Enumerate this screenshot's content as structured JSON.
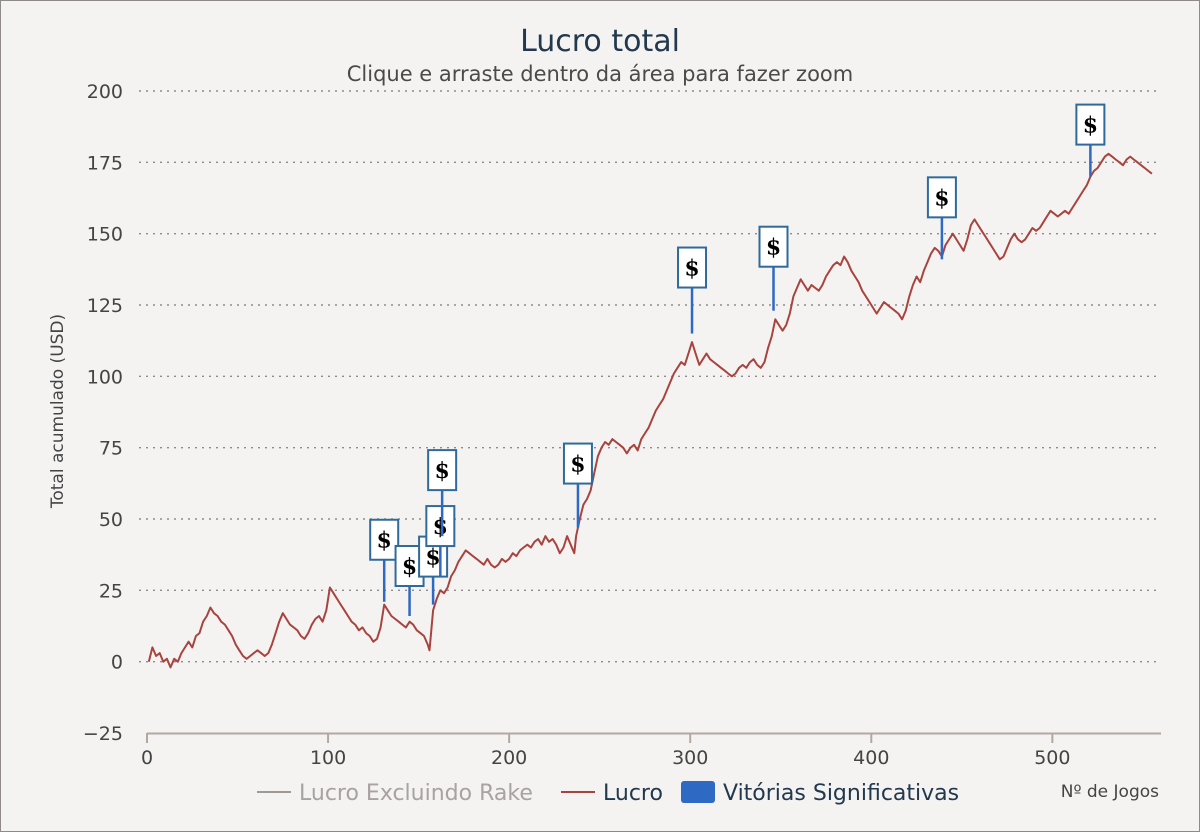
{
  "chart_data": {
    "type": "line",
    "title": "Lucro total",
    "subtitle": "Clique e arraste dentro da área para fazer zoom",
    "ylabel": "Total acumulado (USD)",
    "xlabel": "Nº de Jogos",
    "xlim": [
      0,
      560
    ],
    "ylim": [
      -25,
      200
    ],
    "x_ticks": [
      0,
      100,
      200,
      300,
      400,
      500
    ],
    "y_ticks": [
      200,
      175,
      150,
      125,
      100,
      75,
      50,
      25,
      0,
      -25
    ],
    "grid": true,
    "legend_position": "bottom",
    "legend": [
      {
        "label": "Lucro Excluindo Rake",
        "color": "#a09a96",
        "kind": "line",
        "visible": false
      },
      {
        "label": "Lucro",
        "color": "#a8443f",
        "kind": "line",
        "visible": true
      },
      {
        "label": "Vitórias Significativas",
        "color": "#2e69c4",
        "kind": "box",
        "visible": true
      }
    ],
    "series": [
      {
        "name": "Lucro",
        "color": "#a8443f",
        "points": [
          [
            1,
            0
          ],
          [
            3,
            5
          ],
          [
            5,
            2
          ],
          [
            7,
            3
          ],
          [
            9,
            0
          ],
          [
            11,
            1
          ],
          [
            13,
            -2
          ],
          [
            15,
            1
          ],
          [
            17,
            0
          ],
          [
            19,
            3
          ],
          [
            21,
            5
          ],
          [
            23,
            7
          ],
          [
            25,
            5
          ],
          [
            27,
            9
          ],
          [
            29,
            10
          ],
          [
            31,
            14
          ],
          [
            33,
            16
          ],
          [
            35,
            19
          ],
          [
            37,
            17
          ],
          [
            39,
            16
          ],
          [
            41,
            14
          ],
          [
            43,
            13
          ],
          [
            45,
            11
          ],
          [
            47,
            9
          ],
          [
            49,
            6
          ],
          [
            51,
            4
          ],
          [
            53,
            2
          ],
          [
            55,
            1
          ],
          [
            57,
            2
          ],
          [
            59,
            3
          ],
          [
            61,
            4
          ],
          [
            63,
            3
          ],
          [
            65,
            2
          ],
          [
            67,
            3
          ],
          [
            69,
            6
          ],
          [
            71,
            10
          ],
          [
            73,
            14
          ],
          [
            75,
            17
          ],
          [
            77,
            15
          ],
          [
            79,
            13
          ],
          [
            81,
            12
          ],
          [
            83,
            11
          ],
          [
            85,
            9
          ],
          [
            87,
            8
          ],
          [
            89,
            10
          ],
          [
            91,
            13
          ],
          [
            93,
            15
          ],
          [
            95,
            16
          ],
          [
            97,
            14
          ],
          [
            99,
            18
          ],
          [
            101,
            26
          ],
          [
            103,
            24
          ],
          [
            105,
            22
          ],
          [
            107,
            20
          ],
          [
            109,
            18
          ],
          [
            111,
            16
          ],
          [
            113,
            14
          ],
          [
            115,
            13
          ],
          [
            117,
            11
          ],
          [
            119,
            12
          ],
          [
            121,
            10
          ],
          [
            123,
            9
          ],
          [
            125,
            7
          ],
          [
            127,
            8
          ],
          [
            129,
            12
          ],
          [
            131,
            20
          ],
          [
            133,
            18
          ],
          [
            135,
            16
          ],
          [
            137,
            15
          ],
          [
            139,
            14
          ],
          [
            141,
            13
          ],
          [
            143,
            12
          ],
          [
            145,
            14
          ],
          [
            147,
            13
          ],
          [
            149,
            11
          ],
          [
            151,
            10
          ],
          [
            153,
            9
          ],
          [
            155,
            6
          ],
          [
            156,
            4
          ],
          [
            158,
            18
          ],
          [
            160,
            22
          ],
          [
            162,
            25
          ],
          [
            164,
            24
          ],
          [
            166,
            26
          ],
          [
            168,
            30
          ],
          [
            170,
            32
          ],
          [
            172,
            35
          ],
          [
            174,
            37
          ],
          [
            176,
            39
          ],
          [
            178,
            38
          ],
          [
            180,
            37
          ],
          [
            182,
            36
          ],
          [
            184,
            35
          ],
          [
            186,
            34
          ],
          [
            188,
            36
          ],
          [
            190,
            34
          ],
          [
            192,
            33
          ],
          [
            194,
            34
          ],
          [
            196,
            36
          ],
          [
            198,
            35
          ],
          [
            200,
            36
          ],
          [
            202,
            38
          ],
          [
            204,
            37
          ],
          [
            206,
            39
          ],
          [
            208,
            40
          ],
          [
            210,
            41
          ],
          [
            212,
            40
          ],
          [
            214,
            42
          ],
          [
            216,
            43
          ],
          [
            218,
            41
          ],
          [
            220,
            44
          ],
          [
            222,
            42
          ],
          [
            224,
            43
          ],
          [
            226,
            41
          ],
          [
            228,
            38
          ],
          [
            230,
            40
          ],
          [
            232,
            44
          ],
          [
            234,
            41
          ],
          [
            236,
            38
          ],
          [
            237,
            44
          ],
          [
            239,
            50
          ],
          [
            241,
            55
          ],
          [
            243,
            57
          ],
          [
            245,
            60
          ],
          [
            247,
            66
          ],
          [
            249,
            72
          ],
          [
            251,
            75
          ],
          [
            253,
            77
          ],
          [
            255,
            76
          ],
          [
            257,
            78
          ],
          [
            259,
            77
          ],
          [
            261,
            76
          ],
          [
            263,
            75
          ],
          [
            265,
            73
          ],
          [
            267,
            75
          ],
          [
            269,
            76
          ],
          [
            271,
            74
          ],
          [
            273,
            78
          ],
          [
            275,
            80
          ],
          [
            277,
            82
          ],
          [
            279,
            85
          ],
          [
            281,
            88
          ],
          [
            283,
            90
          ],
          [
            285,
            92
          ],
          [
            287,
            95
          ],
          [
            289,
            98
          ],
          [
            291,
            101
          ],
          [
            293,
            103
          ],
          [
            295,
            105
          ],
          [
            297,
            104
          ],
          [
            299,
            108
          ],
          [
            301,
            112
          ],
          [
            303,
            108
          ],
          [
            305,
            104
          ],
          [
            307,
            106
          ],
          [
            309,
            108
          ],
          [
            311,
            106
          ],
          [
            313,
            105
          ],
          [
            315,
            104
          ],
          [
            317,
            103
          ],
          [
            319,
            102
          ],
          [
            321,
            101
          ],
          [
            323,
            100
          ],
          [
            325,
            101
          ],
          [
            327,
            103
          ],
          [
            329,
            104
          ],
          [
            331,
            103
          ],
          [
            333,
            105
          ],
          [
            335,
            106
          ],
          [
            337,
            104
          ],
          [
            339,
            103
          ],
          [
            341,
            105
          ],
          [
            343,
            110
          ],
          [
            345,
            114
          ],
          [
            347,
            120
          ],
          [
            349,
            118
          ],
          [
            351,
            116
          ],
          [
            353,
            118
          ],
          [
            355,
            122
          ],
          [
            357,
            128
          ],
          [
            359,
            131
          ],
          [
            361,
            134
          ],
          [
            363,
            132
          ],
          [
            365,
            130
          ],
          [
            367,
            132
          ],
          [
            369,
            131
          ],
          [
            371,
            130
          ],
          [
            373,
            132
          ],
          [
            375,
            135
          ],
          [
            377,
            137
          ],
          [
            379,
            139
          ],
          [
            381,
            140
          ],
          [
            383,
            139
          ],
          [
            385,
            142
          ],
          [
            387,
            140
          ],
          [
            389,
            137
          ],
          [
            391,
            135
          ],
          [
            393,
            133
          ],
          [
            395,
            130
          ],
          [
            397,
            128
          ],
          [
            399,
            126
          ],
          [
            401,
            124
          ],
          [
            403,
            122
          ],
          [
            405,
            124
          ],
          [
            407,
            126
          ],
          [
            409,
            125
          ],
          [
            411,
            124
          ],
          [
            413,
            123
          ],
          [
            415,
            122
          ],
          [
            417,
            120
          ],
          [
            419,
            123
          ],
          [
            421,
            128
          ],
          [
            423,
            132
          ],
          [
            425,
            135
          ],
          [
            427,
            133
          ],
          [
            429,
            137
          ],
          [
            431,
            140
          ],
          [
            433,
            143
          ],
          [
            435,
            145
          ],
          [
            437,
            144
          ],
          [
            439,
            142
          ],
          [
            441,
            146
          ],
          [
            443,
            148
          ],
          [
            445,
            150
          ],
          [
            447,
            148
          ],
          [
            449,
            146
          ],
          [
            451,
            144
          ],
          [
            453,
            148
          ],
          [
            455,
            153
          ],
          [
            457,
            155
          ],
          [
            459,
            153
          ],
          [
            461,
            151
          ],
          [
            463,
            149
          ],
          [
            465,
            147
          ],
          [
            467,
            145
          ],
          [
            469,
            143
          ],
          [
            471,
            141
          ],
          [
            473,
            142
          ],
          [
            475,
            145
          ],
          [
            477,
            148
          ],
          [
            479,
            150
          ],
          [
            481,
            148
          ],
          [
            483,
            147
          ],
          [
            485,
            148
          ],
          [
            487,
            150
          ],
          [
            489,
            152
          ],
          [
            491,
            151
          ],
          [
            493,
            152
          ],
          [
            495,
            154
          ],
          [
            497,
            156
          ],
          [
            499,
            158
          ],
          [
            501,
            157
          ],
          [
            503,
            156
          ],
          [
            505,
            157
          ],
          [
            507,
            158
          ],
          [
            509,
            157
          ],
          [
            511,
            159
          ],
          [
            513,
            161
          ],
          [
            515,
            163
          ],
          [
            517,
            165
          ],
          [
            519,
            167
          ],
          [
            521,
            170
          ],
          [
            523,
            172
          ],
          [
            525,
            173
          ],
          [
            527,
            175
          ],
          [
            529,
            177
          ],
          [
            531,
            178
          ],
          [
            533,
            177
          ],
          [
            535,
            176
          ],
          [
            537,
            175
          ],
          [
            539,
            174
          ],
          [
            541,
            176
          ],
          [
            543,
            177
          ],
          [
            545,
            176
          ],
          [
            547,
            175
          ],
          [
            549,
            174
          ],
          [
            551,
            173
          ],
          [
            553,
            172
          ],
          [
            555,
            171
          ]
        ]
      }
    ],
    "flags": [
      {
        "x": 131,
        "y": 21,
        "label": "$"
      },
      {
        "x": 145,
        "y": 16,
        "label": "$"
      },
      {
        "x": 158,
        "y": 20,
        "label": "$"
      },
      {
        "x": 162,
        "y": 30,
        "label": "$"
      },
      {
        "x": 163,
        "y": 44,
        "label": "$"
      },
      {
        "x": 238,
        "y": 47,
        "label": "$"
      },
      {
        "x": 301,
        "y": 115,
        "label": "$"
      },
      {
        "x": 346,
        "y": 123,
        "label": "$"
      },
      {
        "x": 439,
        "y": 141,
        "label": "$"
      },
      {
        "x": 521,
        "y": 170,
        "label": "$"
      }
    ]
  }
}
